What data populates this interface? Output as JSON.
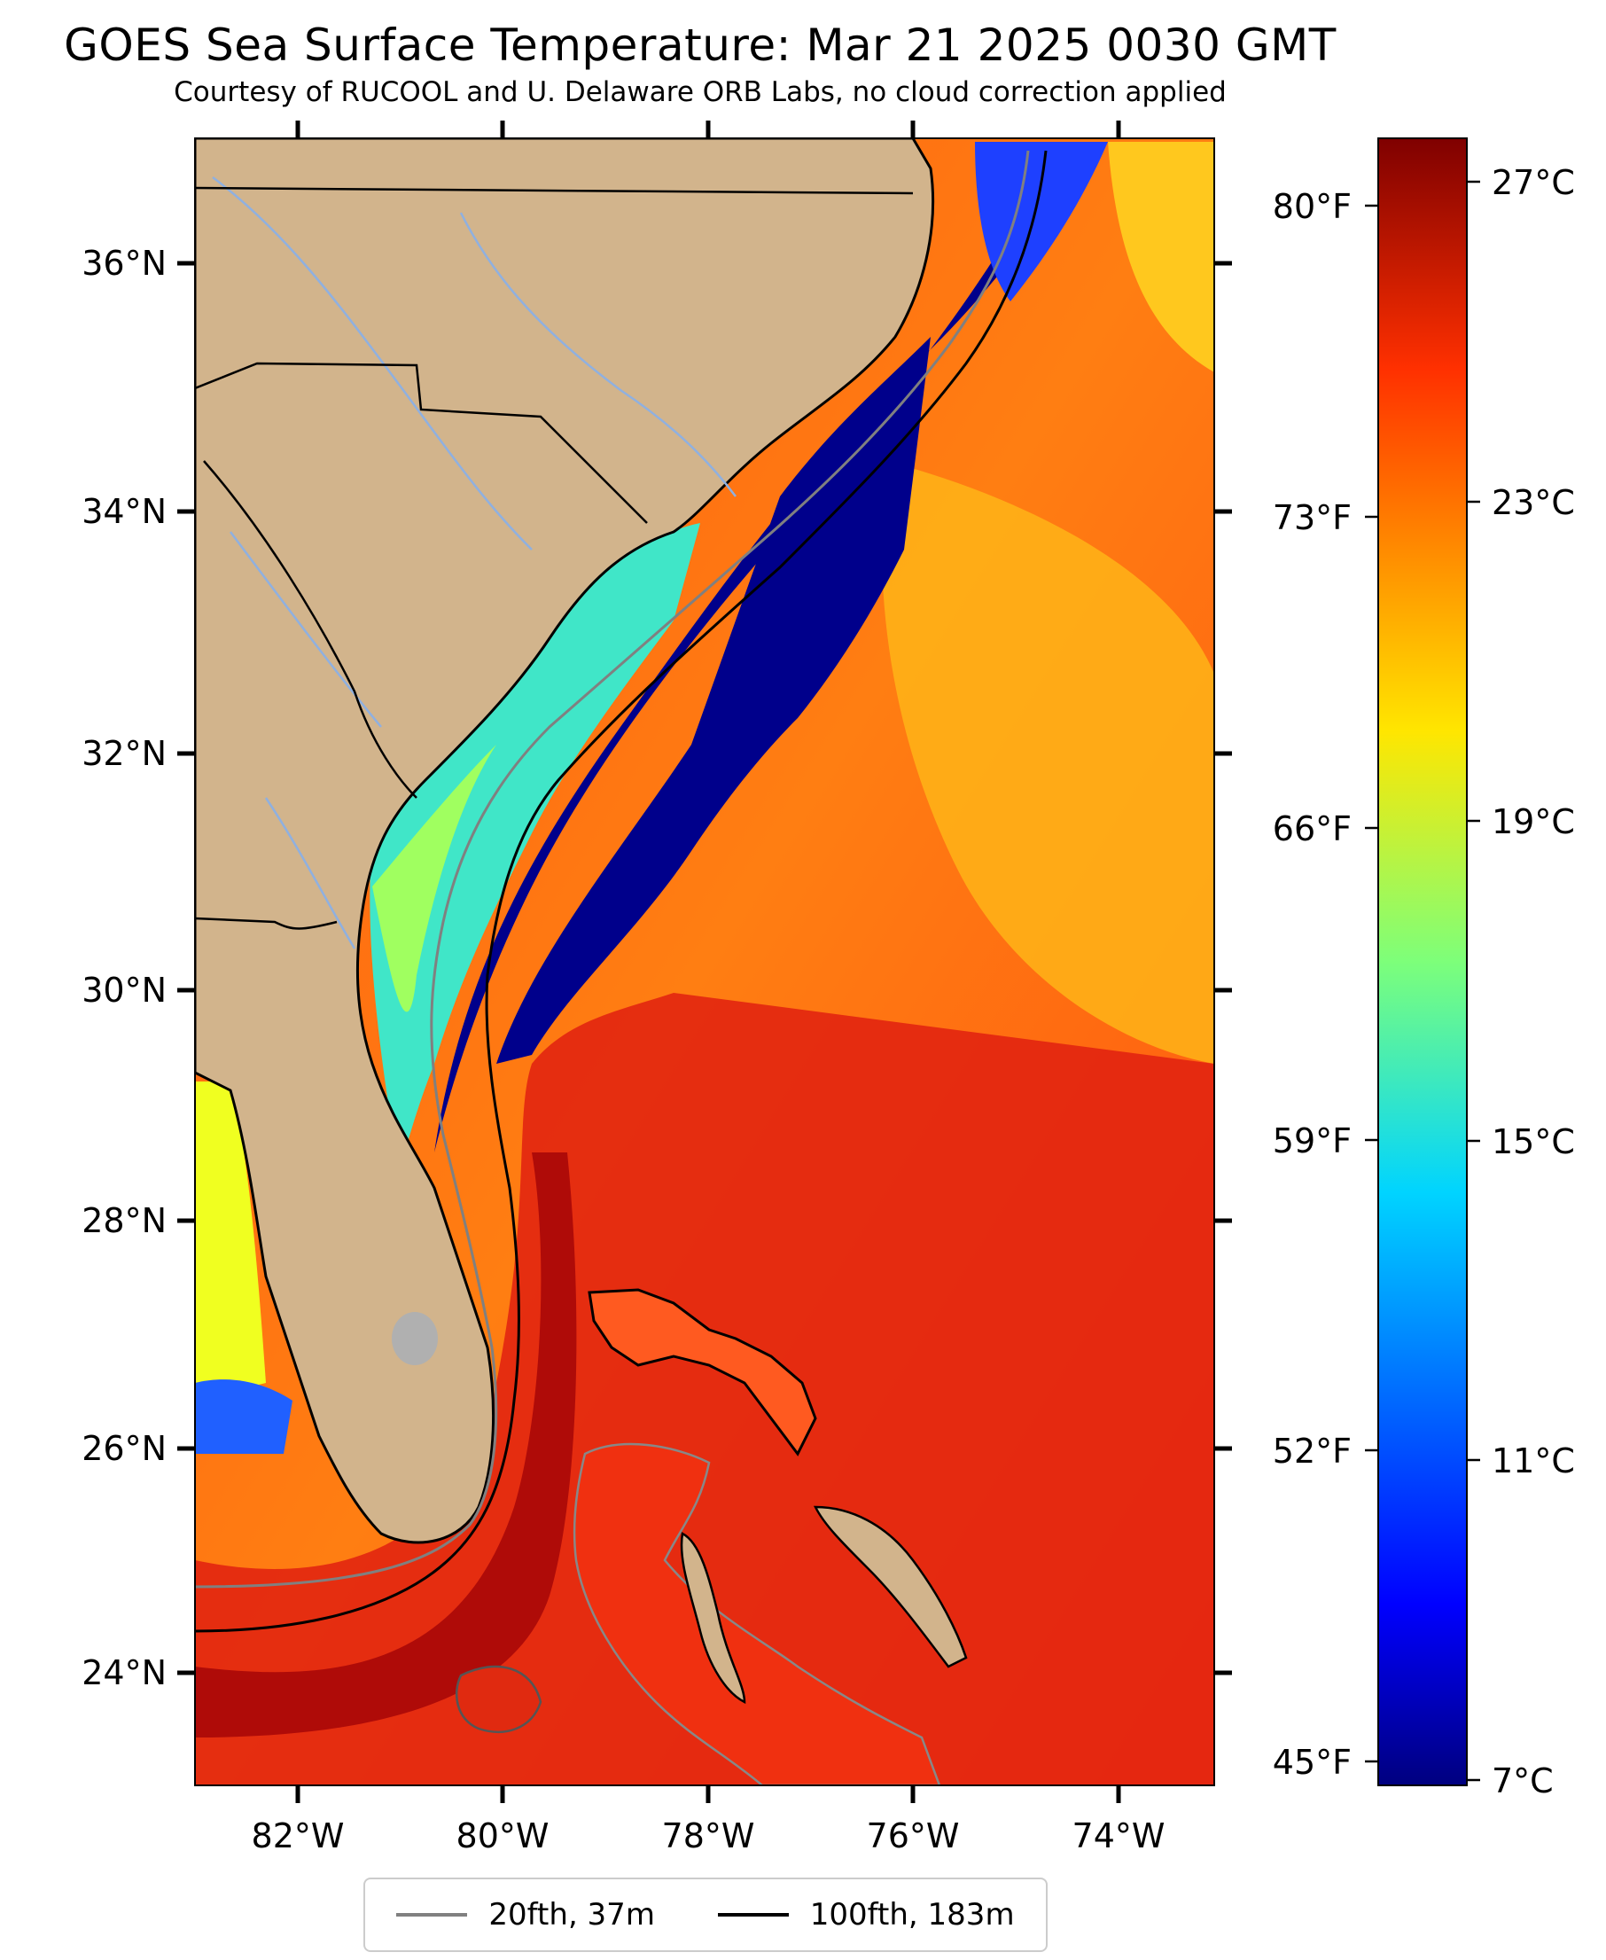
{
  "title": "GOES Sea Surface Temperature: Mar 21 2025 0030 GMT",
  "subtitle": "Courtesy of RUCOOL and U. Delaware ORB Labs, no cloud correction applied",
  "axes": {
    "lon_labels": [
      "82°W",
      "80°W",
      "78°W",
      "76°W",
      "74°W"
    ],
    "lat_labels": [
      "36°N",
      "34°N",
      "32°N",
      "30°N",
      "28°N",
      "26°N",
      "24°N"
    ],
    "lon_range": [
      -83.0,
      -73.0
    ],
    "lat_range": [
      23.1,
      37.1
    ]
  },
  "colorbar": {
    "celsius_labels": [
      "27°C",
      "23°C",
      "19°C",
      "15°C",
      "11°C",
      "7°C"
    ],
    "fahrenheit_labels": [
      "80°F",
      "73°F",
      "66°F",
      "59°F",
      "52°F",
      "45°F"
    ],
    "range_c": [
      7,
      27.5
    ],
    "colormap": "jet"
  },
  "legend": {
    "items": [
      {
        "label": "20fth, 37m",
        "color": "#808080"
      },
      {
        "label": "100fth, 183m",
        "color": "#000000"
      }
    ]
  },
  "colors": {
    "land": "#d2b48c",
    "gulf_stream": "#cc1010",
    "sargasso": "#ff7a10",
    "cold_shelf": "#00008b",
    "coastal": "#40e0d0"
  }
}
